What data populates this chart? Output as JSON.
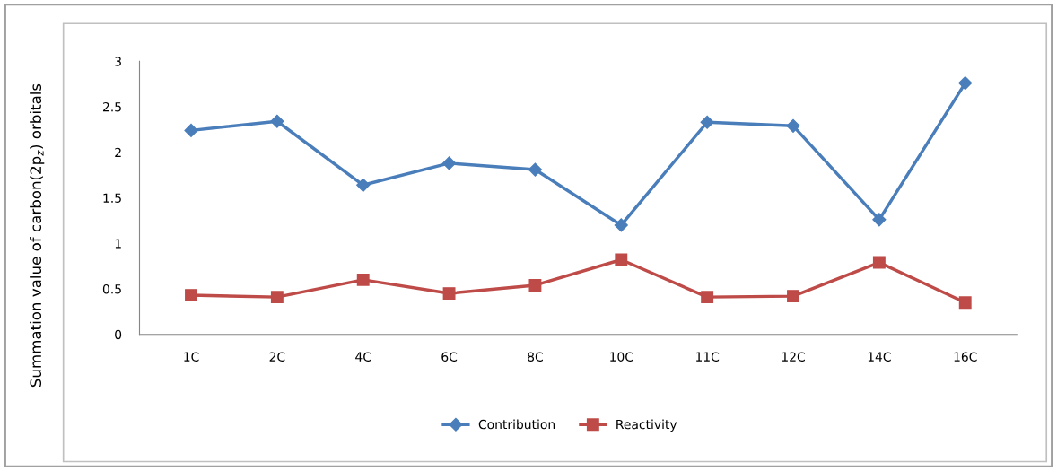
{
  "chart_data": {
    "type": "line",
    "ylabel": "Summation value of carbon(2p$_{z}$) orbitals",
    "categories": [
      "1C",
      "2C",
      "4C",
      "6C",
      "8C",
      "10C",
      "11C",
      "12C",
      "14C",
      "16C"
    ],
    "series": [
      {
        "name": "Contribution",
        "color": "#4a7ebb",
        "marker": "diamond",
        "values": [
          2.24,
          2.34,
          1.64,
          1.88,
          1.81,
          1.2,
          2.33,
          2.29,
          1.26,
          2.76
        ]
      },
      {
        "name": "Reactivity",
        "color": "#be4b48",
        "marker": "square",
        "values": [
          0.43,
          0.41,
          0.6,
          0.45,
          0.54,
          0.82,
          0.41,
          0.42,
          0.79,
          0.35
        ]
      }
    ],
    "ylim": [
      0,
      3
    ],
    "yticks": [
      0,
      0.5,
      1,
      1.5,
      2,
      2.5,
      3
    ],
    "grid": false,
    "legend": "bottom",
    "line_style": "solid"
  }
}
